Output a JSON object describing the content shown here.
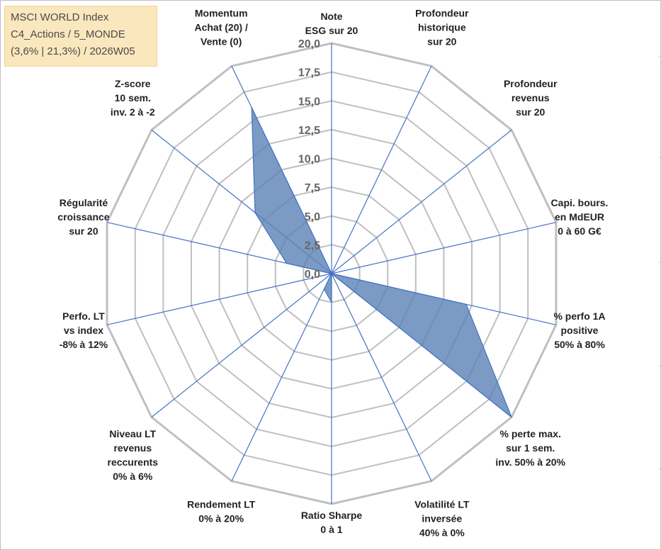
{
  "title_box": {
    "line1": "MSCI WORLD Index",
    "line2": "C4_Actions / 5_MONDE",
    "line3": "(3,6% | 21,3%) / 2026W05"
  },
  "colors": {
    "fill": "#5b82b5",
    "stroke": "#4472c4",
    "grid": "#bfbfbf",
    "title_bg": "#fbe7bd"
  },
  "chart_data": {
    "type": "radar",
    "rmax": 20,
    "ticks": [
      "0,0",
      "2,5",
      "5,0",
      "7,5",
      "10,0",
      "12,5",
      "15,0",
      "17,5",
      "20,0"
    ],
    "grid": true,
    "axes": [
      {
        "label": [
          "Note",
          "ESG sur 20"
        ],
        "value": 0
      },
      {
        "label": [
          "Profondeur",
          "historique",
          "sur 20"
        ],
        "value": 0
      },
      {
        "label": [
          "Profondeur",
          "revenus",
          "sur 20"
        ],
        "value": 0
      },
      {
        "label": [
          "Capi. bours.",
          "en MdEUR",
          "0 à 60 G€"
        ],
        "value": 0
      },
      {
        "label": [
          "% perfo 1A",
          "positive",
          "50% à 80%"
        ],
        "value": 12.0
      },
      {
        "label": [
          "% perte max.",
          "sur 1 sem.",
          "inv. 50% à 20%"
        ],
        "value": 20.0
      },
      {
        "label": [
          "Volatilité LT",
          "inversée",
          "40% à 0%"
        ],
        "value": 0
      },
      {
        "label": [
          "Ratio Sharpe",
          "0 à 1"
        ],
        "value": 2.5
      },
      {
        "label": [
          "Rendement LT",
          "0% à 20%"
        ],
        "value": 1.5
      },
      {
        "label": [
          "Niveau LT",
          "revenus",
          "reccurents",
          "0% à 6%"
        ],
        "value": 0
      },
      {
        "label": [
          "Perfo. LT",
          "vs index",
          "-8% à 12%"
        ],
        "value": 0
      },
      {
        "label": [
          "Régularité",
          "croissance",
          "sur 20"
        ],
        "value": 4.0
      },
      {
        "label": [
          "Z-score",
          "10 sem.",
          "inv. 2 à -2"
        ],
        "value": 8.5
      },
      {
        "label": [
          "Momentum",
          "Achat (20) /",
          "Vente (0)"
        ],
        "value": 16.0
      }
    ]
  }
}
